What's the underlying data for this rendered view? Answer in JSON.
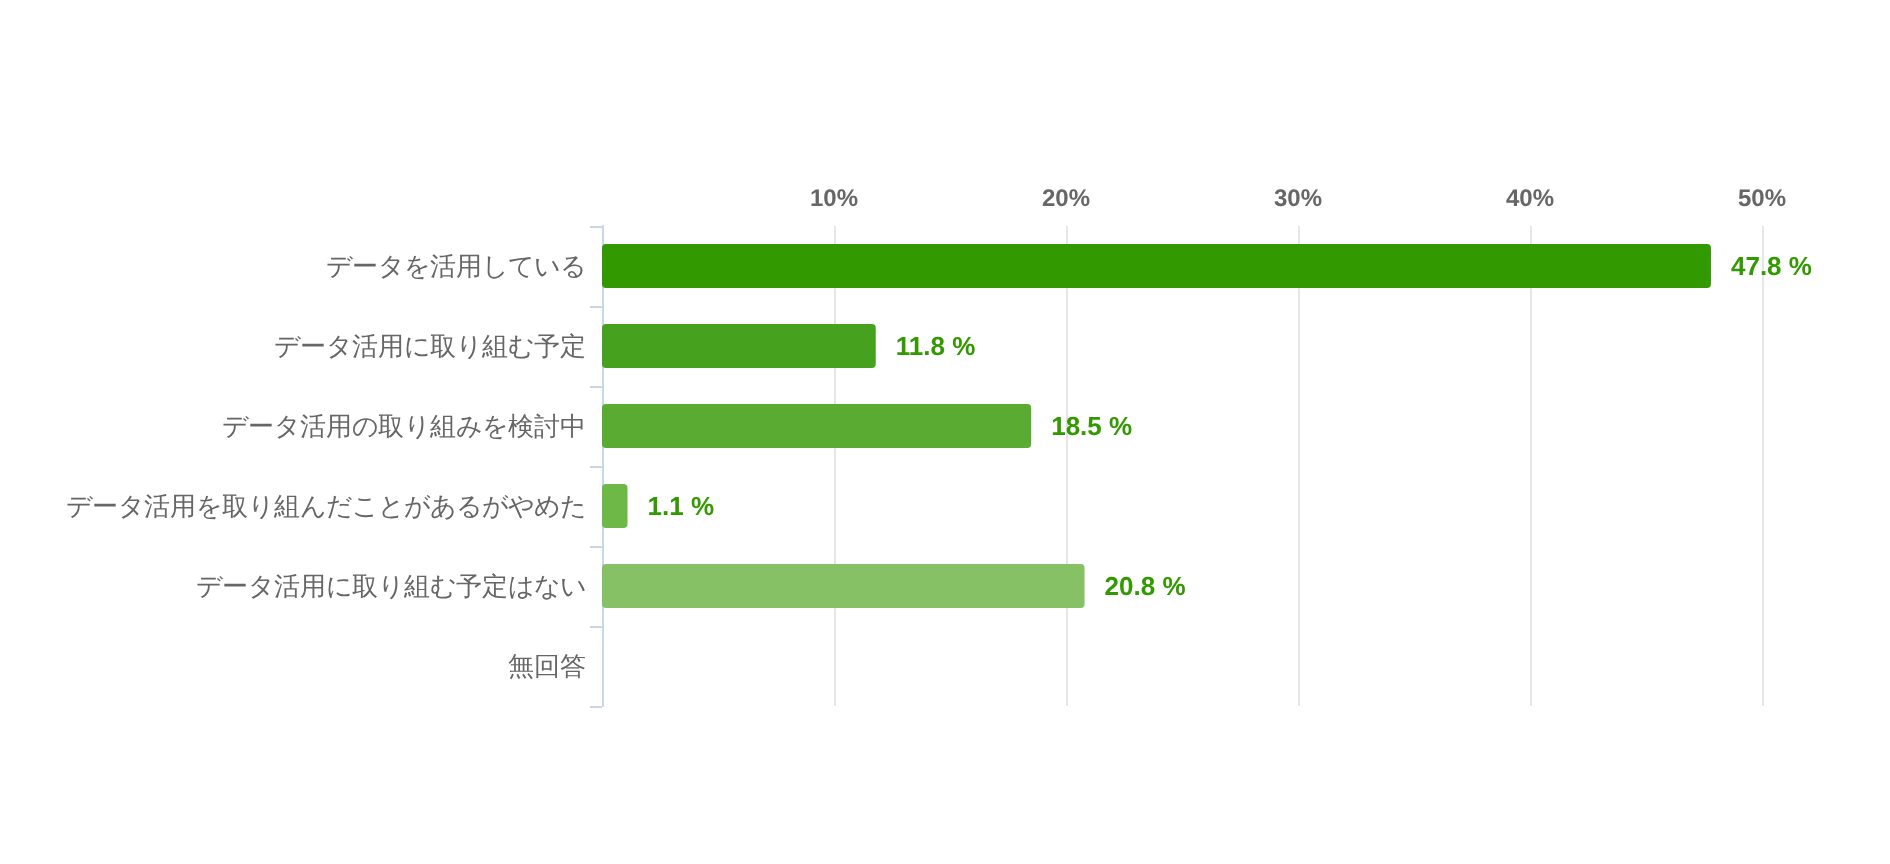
{
  "chart_data": {
    "type": "bar",
    "orientation": "horizontal",
    "categories": [
      "データを活用している",
      "データ活用に取り組む予定",
      "データ活用の取り組みを検討中",
      "データ活用を取り組んだことがあるがやめた",
      "データ活用に取り組む予定はない",
      "無回答"
    ],
    "values": [
      47.8,
      11.8,
      18.5,
      1.1,
      20.8,
      null
    ],
    "value_labels": [
      "47.8 %",
      "11.8 %",
      "18.5 %",
      "1.1 %",
      "20.8 %",
      null
    ],
    "colors": [
      "#339900",
      "#46a11e",
      "#5aab32",
      "#6db846",
      "#86c166",
      "#9ccc80"
    ],
    "xlim": [
      0,
      50
    ],
    "xticks": [
      {
        "value": 10,
        "label": "10%"
      },
      {
        "value": 20,
        "label": "20%"
      },
      {
        "value": 30,
        "label": "30%"
      },
      {
        "value": 40,
        "label": "40%"
      },
      {
        "value": 50,
        "label": "50%"
      }
    ],
    "grid": "x"
  }
}
